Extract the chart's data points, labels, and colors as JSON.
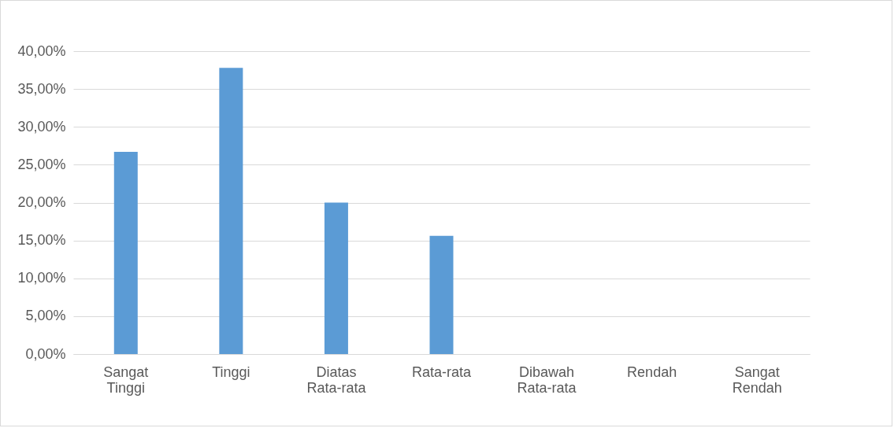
{
  "chart_data": {
    "type": "bar",
    "categories": [
      "Sangat Tinggi",
      "Tinggi",
      "Diatas Rata-rata",
      "Rata-rata",
      "Dibawah Rata-rata",
      "Rendah",
      "Sangat Rendah"
    ],
    "values": [
      26.7,
      37.8,
      20.0,
      15.6,
      0,
      0,
      0
    ],
    "color": "#5b9bd5",
    "ylim": [
      0,
      40
    ],
    "yticks": [
      {
        "value": 0,
        "label": "0,00%"
      },
      {
        "value": 5,
        "label": "5,00%"
      },
      {
        "value": 10,
        "label": "10,00%"
      },
      {
        "value": 15,
        "label": "15,00%"
      },
      {
        "value": 20,
        "label": "20,00%"
      },
      {
        "value": 25,
        "label": "25,00%"
      },
      {
        "value": 30,
        "label": "30,00%"
      },
      {
        "value": 35,
        "label": "35,00%"
      },
      {
        "value": 40,
        "label": "40,00%"
      }
    ],
    "grid": "y"
  }
}
